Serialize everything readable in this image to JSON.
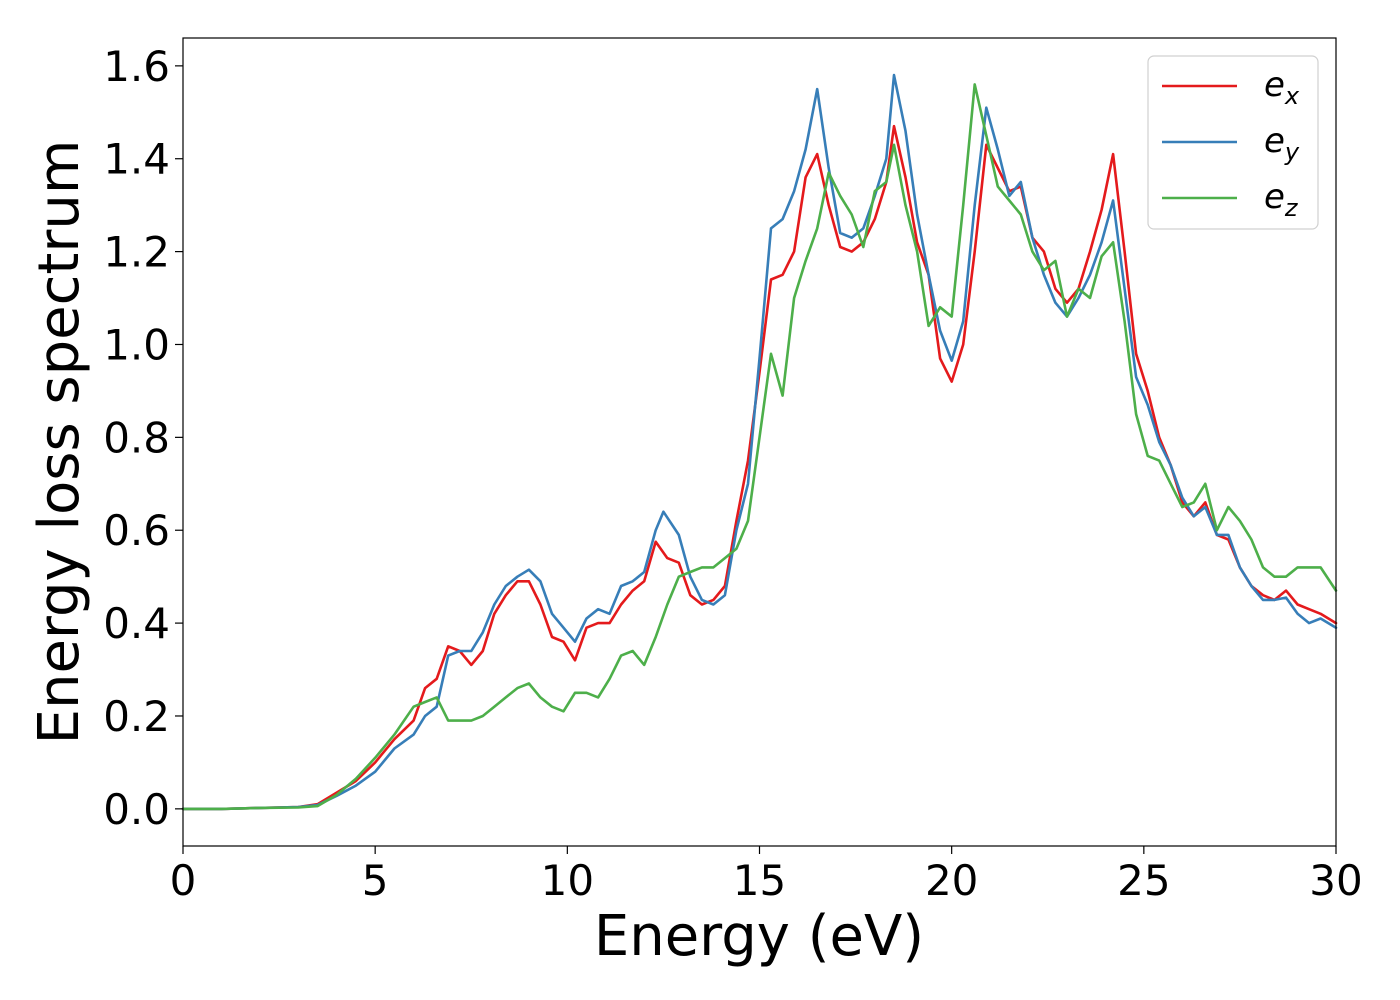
{
  "chart_data": {
    "type": "line",
    "xlabel": "Energy (eV)",
    "ylabel": "Energy loss spectrum",
    "xlim": [
      0,
      30
    ],
    "ylim": [
      -0.08,
      1.66
    ],
    "xticks": [
      0,
      5,
      10,
      15,
      20,
      25,
      30
    ],
    "xtick_labels": [
      "0",
      "5",
      "10",
      "15",
      "20",
      "25",
      "30"
    ],
    "yticks": [
      0.0,
      0.2,
      0.4,
      0.6,
      0.8,
      1.0,
      1.2,
      1.4,
      1.6
    ],
    "ytick_labels": [
      "0.0",
      "0.2",
      "0.4",
      "0.6",
      "0.8",
      "1.0",
      "1.2",
      "1.4",
      "1.6"
    ],
    "grid": false,
    "legend_position": "top-right",
    "series": [
      {
        "name": "e",
        "subscript": "x",
        "color": "#e41a1c",
        "x": [
          0,
          1,
          2,
          3,
          3.5,
          4,
          4.5,
          5,
          5.5,
          6,
          6.3,
          6.6,
          6.9,
          7.2,
          7.5,
          7.8,
          8.1,
          8.4,
          8.7,
          9.0,
          9.3,
          9.6,
          9.9,
          10.2,
          10.5,
          10.8,
          11.1,
          11.4,
          11.7,
          12.0,
          12.3,
          12.6,
          12.9,
          13.2,
          13.5,
          13.8,
          14.1,
          14.4,
          14.7,
          15.0,
          15.3,
          15.6,
          15.9,
          16.2,
          16.5,
          16.8,
          17.1,
          17.4,
          17.7,
          18.0,
          18.3,
          18.5,
          18.8,
          19.1,
          19.4,
          19.7,
          20.0,
          20.3,
          20.6,
          20.9,
          21.2,
          21.5,
          21.8,
          22.1,
          22.4,
          22.7,
          23.0,
          23.3,
          23.6,
          23.9,
          24.2,
          24.5,
          24.8,
          25.1,
          25.4,
          25.7,
          26.0,
          26.3,
          26.6,
          26.9,
          27.2,
          27.5,
          27.8,
          28.1,
          28.4,
          28.7,
          29.0,
          29.3,
          29.6,
          30.0
        ],
        "y": [
          0.0,
          0.0,
          0.002,
          0.004,
          0.01,
          0.035,
          0.06,
          0.1,
          0.15,
          0.19,
          0.26,
          0.28,
          0.35,
          0.34,
          0.31,
          0.34,
          0.42,
          0.46,
          0.49,
          0.49,
          0.44,
          0.37,
          0.36,
          0.32,
          0.39,
          0.4,
          0.4,
          0.44,
          0.47,
          0.49,
          0.575,
          0.54,
          0.53,
          0.46,
          0.44,
          0.45,
          0.48,
          0.62,
          0.75,
          0.94,
          1.14,
          1.15,
          1.2,
          1.36,
          1.41,
          1.3,
          1.21,
          1.2,
          1.22,
          1.27,
          1.35,
          1.47,
          1.36,
          1.22,
          1.15,
          0.97,
          0.92,
          1.0,
          1.2,
          1.43,
          1.38,
          1.33,
          1.34,
          1.23,
          1.2,
          1.12,
          1.09,
          1.12,
          1.2,
          1.29,
          1.41,
          1.2,
          0.98,
          0.9,
          0.8,
          0.74,
          0.66,
          0.63,
          0.66,
          0.59,
          0.58,
          0.52,
          0.48,
          0.46,
          0.45,
          0.47,
          0.44,
          0.43,
          0.42,
          0.4
        ]
      },
      {
        "name": "e",
        "subscript": "y",
        "color": "#377eb8",
        "x": [
          0,
          1,
          2,
          3,
          3.5,
          4,
          4.5,
          5,
          5.5,
          6,
          6.3,
          6.6,
          6.9,
          7.2,
          7.5,
          7.8,
          8.1,
          8.4,
          8.7,
          9.0,
          9.3,
          9.6,
          9.9,
          10.2,
          10.5,
          10.8,
          11.1,
          11.4,
          11.7,
          12.0,
          12.3,
          12.5,
          12.9,
          13.2,
          13.5,
          13.8,
          14.1,
          14.4,
          14.7,
          15.0,
          15.3,
          15.6,
          15.9,
          16.2,
          16.5,
          16.8,
          17.1,
          17.4,
          17.7,
          18.0,
          18.3,
          18.5,
          18.8,
          19.1,
          19.4,
          19.7,
          20.0,
          20.3,
          20.6,
          20.9,
          21.2,
          21.5,
          21.8,
          22.1,
          22.4,
          22.7,
          23.0,
          23.3,
          23.6,
          23.9,
          24.2,
          24.5,
          24.8,
          25.1,
          25.4,
          25.7,
          26.0,
          26.3,
          26.6,
          26.9,
          27.2,
          27.5,
          27.8,
          28.1,
          28.4,
          28.7,
          29.0,
          29.3,
          29.6,
          30.0
        ],
        "y": [
          0.0,
          0.0,
          0.002,
          0.004,
          0.008,
          0.028,
          0.05,
          0.08,
          0.13,
          0.16,
          0.2,
          0.22,
          0.33,
          0.34,
          0.34,
          0.38,
          0.44,
          0.48,
          0.5,
          0.515,
          0.49,
          0.42,
          0.39,
          0.36,
          0.41,
          0.43,
          0.42,
          0.48,
          0.49,
          0.51,
          0.6,
          0.64,
          0.59,
          0.5,
          0.45,
          0.44,
          0.46,
          0.6,
          0.7,
          0.97,
          1.25,
          1.27,
          1.33,
          1.42,
          1.55,
          1.38,
          1.24,
          1.23,
          1.25,
          1.32,
          1.4,
          1.58,
          1.46,
          1.28,
          1.15,
          1.03,
          0.965,
          1.05,
          1.3,
          1.51,
          1.42,
          1.32,
          1.35,
          1.23,
          1.15,
          1.09,
          1.06,
          1.1,
          1.15,
          1.22,
          1.31,
          1.12,
          0.93,
          0.87,
          0.79,
          0.74,
          0.67,
          0.63,
          0.65,
          0.59,
          0.59,
          0.52,
          0.48,
          0.45,
          0.45,
          0.455,
          0.42,
          0.4,
          0.41,
          0.39
        ]
      },
      {
        "name": "e",
        "subscript": "z",
        "color": "#4daf4a",
        "x": [
          0,
          1,
          2,
          3,
          3.5,
          4,
          4.5,
          5,
          5.5,
          6,
          6.3,
          6.6,
          6.9,
          7.2,
          7.5,
          7.8,
          8.1,
          8.4,
          8.7,
          9.0,
          9.3,
          9.6,
          9.9,
          10.2,
          10.5,
          10.8,
          11.1,
          11.4,
          11.7,
          12.0,
          12.3,
          12.6,
          12.9,
          13.2,
          13.5,
          13.8,
          14.1,
          14.4,
          14.7,
          15.0,
          15.3,
          15.6,
          15.9,
          16.2,
          16.5,
          16.8,
          17.1,
          17.4,
          17.7,
          18.0,
          18.3,
          18.5,
          18.8,
          19.1,
          19.4,
          19.7,
          20.0,
          20.3,
          20.6,
          20.9,
          21.2,
          21.5,
          21.8,
          22.1,
          22.4,
          22.7,
          23.0,
          23.3,
          23.6,
          23.9,
          24.2,
          24.5,
          24.8,
          25.1,
          25.4,
          25.7,
          26.0,
          26.3,
          26.6,
          26.9,
          27.2,
          27.5,
          27.8,
          28.1,
          28.4,
          28.7,
          29.0,
          29.3,
          29.6,
          30.0
        ],
        "y": [
          0.0,
          0.0,
          0.002,
          0.003,
          0.006,
          0.03,
          0.065,
          0.11,
          0.16,
          0.22,
          0.23,
          0.24,
          0.19,
          0.19,
          0.19,
          0.2,
          0.22,
          0.24,
          0.26,
          0.27,
          0.24,
          0.22,
          0.21,
          0.25,
          0.25,
          0.24,
          0.28,
          0.33,
          0.34,
          0.31,
          0.37,
          0.44,
          0.5,
          0.51,
          0.52,
          0.52,
          0.54,
          0.56,
          0.62,
          0.8,
          0.98,
          0.89,
          1.1,
          1.18,
          1.25,
          1.37,
          1.32,
          1.28,
          1.21,
          1.33,
          1.35,
          1.43,
          1.3,
          1.2,
          1.04,
          1.08,
          1.06,
          1.3,
          1.56,
          1.45,
          1.34,
          1.31,
          1.28,
          1.2,
          1.16,
          1.18,
          1.06,
          1.12,
          1.1,
          1.19,
          1.22,
          1.05,
          0.85,
          0.76,
          0.75,
          0.7,
          0.65,
          0.66,
          0.7,
          0.6,
          0.65,
          0.62,
          0.58,
          0.52,
          0.5,
          0.5,
          0.52,
          0.52,
          0.52,
          0.47
        ]
      }
    ]
  }
}
